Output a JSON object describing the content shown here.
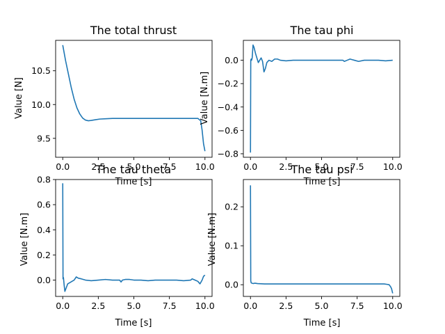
{
  "colors": {
    "line": "#1f77b4",
    "axis": "#000000",
    "background": "#ffffff"
  },
  "chart_data": [
    {
      "type": "line",
      "title": "The total thrust",
      "xlabel": "Time [s]",
      "ylabel": "Value [N]",
      "xlim": [
        -0.5,
        10.5
      ],
      "ylim": [
        9.22,
        10.95
      ],
      "xticks": [
        0.0,
        2.5,
        5.0,
        7.5,
        10.0
      ],
      "xtick_labels": [
        "0.0",
        "2.5",
        "5.0",
        "7.5",
        "10.0"
      ],
      "yticks": [
        9.5,
        10.0,
        10.5
      ],
      "ytick_labels": [
        "9.5",
        "10.0",
        "10.5"
      ],
      "grid": false,
      "series": [
        {
          "x": [
            0,
            0.2,
            0.4,
            0.6,
            0.8,
            1.0,
            1.2,
            1.4,
            1.6,
            1.8,
            2.0,
            2.3,
            2.6,
            3.0,
            3.5,
            4.0,
            5.0,
            6.0,
            7.0,
            8.0,
            9.0,
            9.5,
            9.7,
            9.8,
            9.9,
            10.0
          ],
          "y": [
            10.88,
            10.65,
            10.45,
            10.25,
            10.08,
            9.95,
            9.86,
            9.8,
            9.77,
            9.76,
            9.765,
            9.775,
            9.785,
            9.79,
            9.795,
            9.795,
            9.795,
            9.795,
            9.795,
            9.795,
            9.795,
            9.795,
            9.76,
            9.62,
            9.42,
            9.31
          ]
        }
      ]
    },
    {
      "type": "line",
      "title": "The tau phi",
      "xlabel": "Time [s]",
      "ylabel": "Value [N.m]",
      "xlim": [
        -0.5,
        10.5
      ],
      "ylim": [
        -0.83,
        0.17
      ],
      "xticks": [
        0.0,
        2.5,
        5.0,
        7.5,
        10.0
      ],
      "xtick_labels": [
        "0.0",
        "2.5",
        "5.0",
        "7.5",
        "10.0"
      ],
      "yticks": [
        -0.8,
        -0.6,
        -0.4,
        -0.2,
        0.0
      ],
      "ytick_labels": [
        "−0.8",
        "−0.6",
        "−0.4",
        "−0.2",
        "0.0"
      ],
      "grid": false,
      "series": [
        {
          "x": [
            0,
            0.02,
            0.05,
            0.08,
            0.12,
            0.18,
            0.25,
            0.35,
            0.45,
            0.55,
            0.65,
            0.75,
            0.85,
            0.95,
            1.05,
            1.15,
            1.3,
            1.5,
            1.7,
            1.9,
            2.1,
            2.5,
            3.0,
            3.5,
            4.0,
            4.5,
            5.0,
            5.5,
            6.0,
            6.5,
            6.6,
            6.8,
            7.0,
            7.3,
            7.6,
            8.0,
            8.5,
            9.0,
            9.5,
            10.0
          ],
          "y": [
            -0.79,
            0.0,
            0.01,
            0.0,
            0.02,
            0.13,
            0.11,
            0.06,
            0.02,
            -0.02,
            0.0,
            0.02,
            -0.01,
            -0.1,
            -0.07,
            -0.02,
            0.0,
            -0.01,
            0.01,
            0.01,
            0.0,
            -0.005,
            0.0,
            0.0,
            0.0,
            0.0,
            0.0,
            0.0,
            0.0,
            0.0,
            -0.01,
            0.0,
            0.01,
            0.0,
            -0.01,
            0.0,
            0.0,
            0.0,
            -0.005,
            0.0
          ]
        }
      ]
    },
    {
      "type": "line",
      "title": "The tau theta",
      "xlabel": "Time [s]",
      "ylabel": "Value [N.m]",
      "xlim": [
        -0.5,
        10.5
      ],
      "ylim": [
        -0.13,
        0.8
      ],
      "xticks": [
        0.0,
        2.5,
        5.0,
        7.5,
        10.0
      ],
      "xtick_labels": [
        "0.0",
        "2.5",
        "5.0",
        "7.5",
        "10.0"
      ],
      "yticks": [
        0.0,
        0.2,
        0.4,
        0.6,
        0.8
      ],
      "ytick_labels": [
        "0.0",
        "0.2",
        "0.4",
        "0.6",
        "0.8"
      ],
      "grid": false,
      "series": [
        {
          "x": [
            0,
            0.02,
            0.05,
            0.1,
            0.15,
            0.25,
            0.35,
            0.5,
            0.65,
            0.8,
            0.95,
            1.1,
            1.3,
            1.6,
            2.0,
            2.5,
            3.0,
            3.5,
            4.0,
            4.1,
            4.2,
            4.4,
            4.7,
            5.0,
            5.5,
            6.0,
            6.5,
            7.0,
            7.5,
            8.0,
            8.5,
            9.0,
            9.1,
            9.3,
            9.5,
            9.65,
            9.8,
            9.9,
            10.0
          ],
          "y": [
            0.77,
            0.01,
            0.02,
            -0.04,
            -0.09,
            -0.06,
            -0.03,
            -0.02,
            -0.01,
            0.0,
            0.025,
            0.015,
            0.01,
            0.0,
            -0.005,
            0.0,
            0.005,
            0.0,
            0.0,
            -0.015,
            0.0,
            0.005,
            0.005,
            0.0,
            0.0,
            -0.005,
            0.0,
            0.0,
            0.0,
            0.0,
            -0.005,
            0.0,
            0.01,
            0.0,
            -0.01,
            -0.03,
            0.0,
            0.03,
            0.04
          ]
        }
      ]
    },
    {
      "type": "line",
      "title": "The tau psi",
      "xlabel": "Time [s]",
      "ylabel": "Value [N.m]",
      "xlim": [
        -0.5,
        10.5
      ],
      "ylim": [
        -0.03,
        0.27
      ],
      "xticks": [
        0.0,
        2.5,
        5.0,
        7.5,
        10.0
      ],
      "xtick_labels": [
        "0.0",
        "2.5",
        "5.0",
        "7.5",
        "10.0"
      ],
      "yticks": [
        0.0,
        0.1,
        0.2
      ],
      "ytick_labels": [
        "0.0",
        "0.1",
        "0.2"
      ],
      "grid": false,
      "series": [
        {
          "x": [
            0,
            0.02,
            0.05,
            0.1,
            0.2,
            0.3,
            0.5,
            1.0,
            2.0,
            4.0,
            6.0,
            8.0,
            9.0,
            9.4,
            9.6,
            9.75,
            9.85,
            9.92,
            10.0
          ],
          "y": [
            0.255,
            0.01,
            0.005,
            0.004,
            0.003,
            0.004,
            0.003,
            0.002,
            0.002,
            0.002,
            0.002,
            0.002,
            0.002,
            0.002,
            0.001,
            0.0,
            -0.005,
            -0.01,
            -0.022
          ]
        }
      ]
    }
  ]
}
